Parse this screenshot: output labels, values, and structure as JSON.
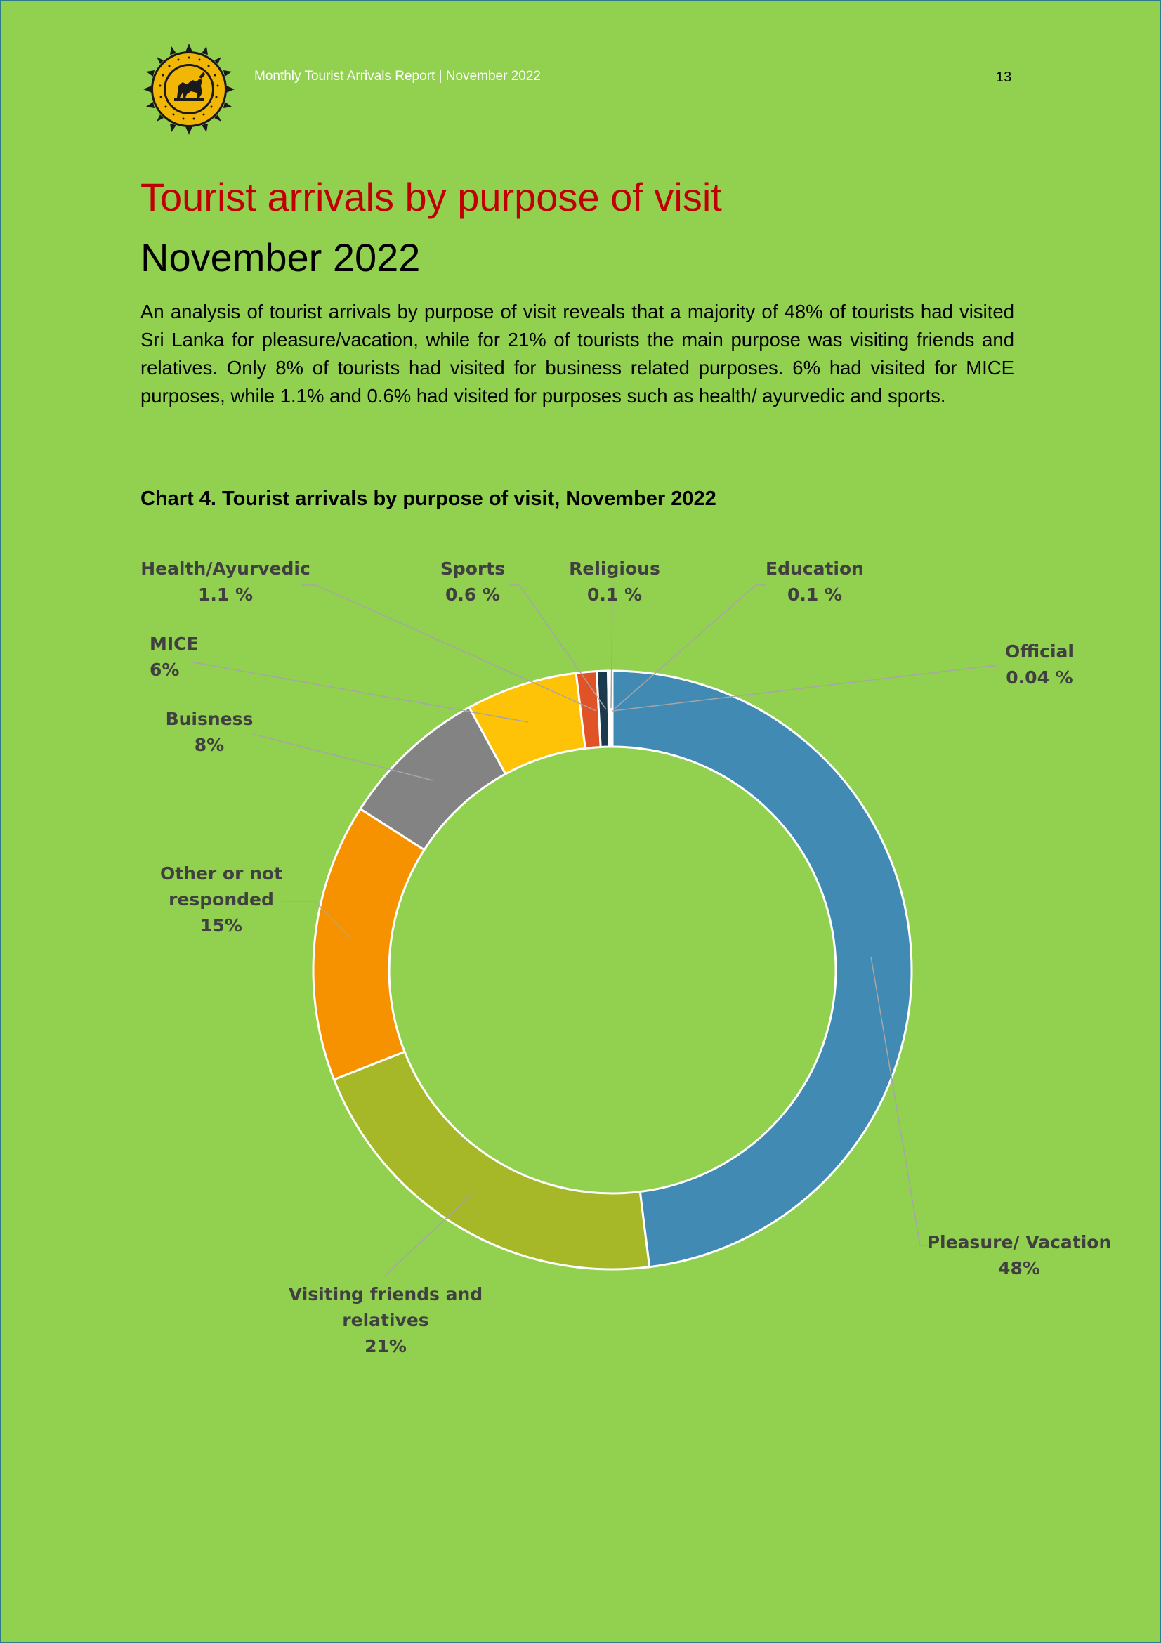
{
  "header": {
    "report_title": "Monthly Tourist Arrivals Report | November  2022",
    "page_number": "13",
    "logo_icon": "lion-emblem-icon",
    "logo_text": "SRI LANKA TOURISM DEVELOPMENT AUTHORITY"
  },
  "page": {
    "title": "Tourist arrivals by purpose of visit",
    "subtitle": "November  2022",
    "intro": "An analysis of tourist arrivals by purpose of visit reveals that a majority of 48% of tourists had visited Sri Lanka for pleasure/vacation, while for 21% of tourists the main purpose was visiting friends and relatives. Only 8% of tourists had visited for business related purposes. 6% had visited for MICE purposes, while 1.1% and 0.6% had visited for purposes such as health/ ayurvedic and sports.",
    "chart_caption": "Chart 4.  Tourist arrivals by purpose of visit, November 2022"
  },
  "chart_data": {
    "type": "pie",
    "variant": "doughnut",
    "title": "",
    "slices": [
      {
        "name": "Pleasure/ Vacation",
        "value": 48,
        "value_label": "48%",
        "color": "#418ab3"
      },
      {
        "name": "Visiting friends and relatives",
        "value": 21,
        "value_label": "21%",
        "color": "#a6b727"
      },
      {
        "name": "Other or not responded",
        "value": 15,
        "value_label": "15%",
        "color": "#f69200"
      },
      {
        "name": "Buisness",
        "value": 8,
        "value_label": "8%",
        "color": "#838383"
      },
      {
        "name": "MICE",
        "value": 6,
        "value_label": "6%",
        "color": "#fec306"
      },
      {
        "name": "Health/Ayurvedic",
        "value": 1.1,
        "value_label": "1.1 %",
        "color": "#df5327"
      },
      {
        "name": "Sports",
        "value": 0.6,
        "value_label": "0.6 %",
        "color": "#1b3a4b"
      },
      {
        "name": "Religious",
        "value": 0.1,
        "value_label": "0.1 %",
        "color": "#7f7f7f"
      },
      {
        "name": "Education",
        "value": 0.1,
        "value_label": "0.1 %",
        "color": "#2c2c2c"
      },
      {
        "name": "Official",
        "value": 0.04,
        "value_label": "0.04 %",
        "color": "#ffffff"
      }
    ]
  }
}
